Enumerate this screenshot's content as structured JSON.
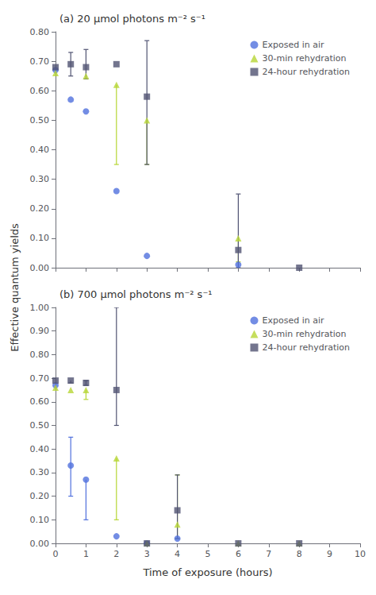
{
  "chart_data": [
    {
      "type": "scatter",
      "title": "(a) 20 μmol photons m⁻² s⁻¹",
      "ylabel": "Effective quantum yields",
      "xlim": [
        0,
        10
      ],
      "xticks": [
        0,
        1,
        2,
        3,
        4,
        5,
        6,
        7,
        8,
        9,
        10
      ],
      "ylim": [
        0.0,
        0.8
      ],
      "yticks": [
        {
          "value": 0.0,
          "label": "0.00"
        },
        {
          "value": 0.1,
          "label": "0.10"
        },
        {
          "value": 0.2,
          "label": "0.20"
        },
        {
          "value": 0.3,
          "label": "0.30"
        },
        {
          "value": 0.4,
          "label": "0.40"
        },
        {
          "value": 0.5,
          "label": "0.50"
        },
        {
          "value": 0.6,
          "label": "0.60"
        },
        {
          "value": 0.7,
          "label": "0.70"
        },
        {
          "value": 0.8,
          "label": "0.80"
        }
      ],
      "grid": false,
      "legend": "upper right",
      "tick_labels": "y",
      "series": [
        {
          "name": "Exposed in air",
          "marker": "circle",
          "x": [
            0,
            0.5,
            1,
            2,
            3,
            6
          ],
          "values": [
            0.67,
            0.57,
            0.53,
            0.26,
            0.04,
            0.01
          ],
          "yerr_lo": [
            0.0,
            0.0,
            0.0,
            0.0,
            0.0,
            0.0
          ],
          "yerr_hi": [
            0.0,
            0.0,
            0.0,
            0.0,
            0.0,
            0.0
          ]
        },
        {
          "name": "30-min rehydration",
          "marker": "triangle",
          "x": [
            0,
            1,
            2,
            3,
            6
          ],
          "values": [
            0.66,
            0.65,
            0.62,
            0.5,
            0.1
          ],
          "yerr_lo": [
            0.0,
            0.0,
            0.27,
            0.15,
            0.08
          ],
          "yerr_hi": [
            0.0,
            0.0,
            0.0,
            0.0,
            0.0
          ]
        },
        {
          "name": "24-hour rehydration",
          "marker": "square",
          "x": [
            0,
            0.5,
            1,
            2,
            3,
            6,
            8
          ],
          "values": [
            0.68,
            0.69,
            0.68,
            0.69,
            0.58,
            0.06,
            0.0
          ],
          "yerr_lo": [
            0.0,
            0.04,
            0.04,
            0.0,
            0.23,
            0.06,
            0.0
          ],
          "yerr_hi": [
            0.0,
            0.04,
            0.06,
            0.0,
            0.19,
            0.19,
            0.0
          ]
        }
      ]
    },
    {
      "type": "scatter",
      "title": "(b) 700 μmol photons m⁻² s⁻¹",
      "xlabel": "Time of exposure (hours)",
      "xlim": [
        0,
        10
      ],
      "xticks": [
        0,
        1,
        2,
        3,
        4,
        5,
        6,
        7,
        8,
        9,
        10
      ],
      "ylim": [
        0.0,
        1.0
      ],
      "yticks": [
        {
          "value": 0.0,
          "label": "0.00"
        },
        {
          "value": 0.1,
          "label": "0.10"
        },
        {
          "value": 0.2,
          "label": "0.20"
        },
        {
          "value": 0.3,
          "label": "0.30"
        },
        {
          "value": 0.4,
          "label": "0.40"
        },
        {
          "value": 0.5,
          "label": "0.50"
        },
        {
          "value": 0.6,
          "label": "0.60"
        },
        {
          "value": 0.7,
          "label": "0.70"
        },
        {
          "value": 0.8,
          "label": "0.80"
        },
        {
          "value": 0.9,
          "label": "0.90"
        },
        {
          "value": 1.0,
          "label": "1.00"
        }
      ],
      "grid": false,
      "legend": "upper right",
      "series": [
        {
          "name": "Exposed in air",
          "marker": "circle",
          "x": [
            0,
            0.5,
            1,
            2,
            3,
            4
          ],
          "values": [
            0.67,
            0.33,
            0.27,
            0.03,
            0.0,
            0.02
          ],
          "yerr_lo": [
            0.0,
            0.13,
            0.17,
            0.0,
            0.0,
            0.0
          ],
          "yerr_hi": [
            0.0,
            0.12,
            0.0,
            0.0,
            0.0,
            0.0
          ]
        },
        {
          "name": "30-min rehydration",
          "marker": "triangle",
          "x": [
            0,
            0.5,
            1,
            2,
            3,
            4,
            6,
            8
          ],
          "values": [
            0.66,
            0.65,
            0.65,
            0.36,
            0.0,
            0.08,
            0.0,
            0.0
          ],
          "yerr_lo": [
            0.0,
            0.0,
            0.04,
            0.26,
            0.0,
            0.06,
            0.0,
            0.0
          ],
          "yerr_hi": [
            0.0,
            0.0,
            0.0,
            0.0,
            0.0,
            0.21,
            0.0,
            0.0
          ]
        },
        {
          "name": "24-hour rehydration",
          "marker": "square",
          "x": [
            0,
            0.5,
            1,
            2,
            3,
            4,
            6,
            8
          ],
          "values": [
            0.69,
            0.69,
            0.68,
            0.65,
            0.0,
            0.14,
            0.0,
            0.0
          ],
          "yerr_lo": [
            0.0,
            0.01,
            0.01,
            0.15,
            0.0,
            0.12,
            0.0,
            0.0
          ],
          "yerr_hi": [
            0.0,
            0.0,
            0.01,
            0.35,
            0.0,
            0.15,
            0.0,
            0.0
          ]
        }
      ]
    }
  ]
}
